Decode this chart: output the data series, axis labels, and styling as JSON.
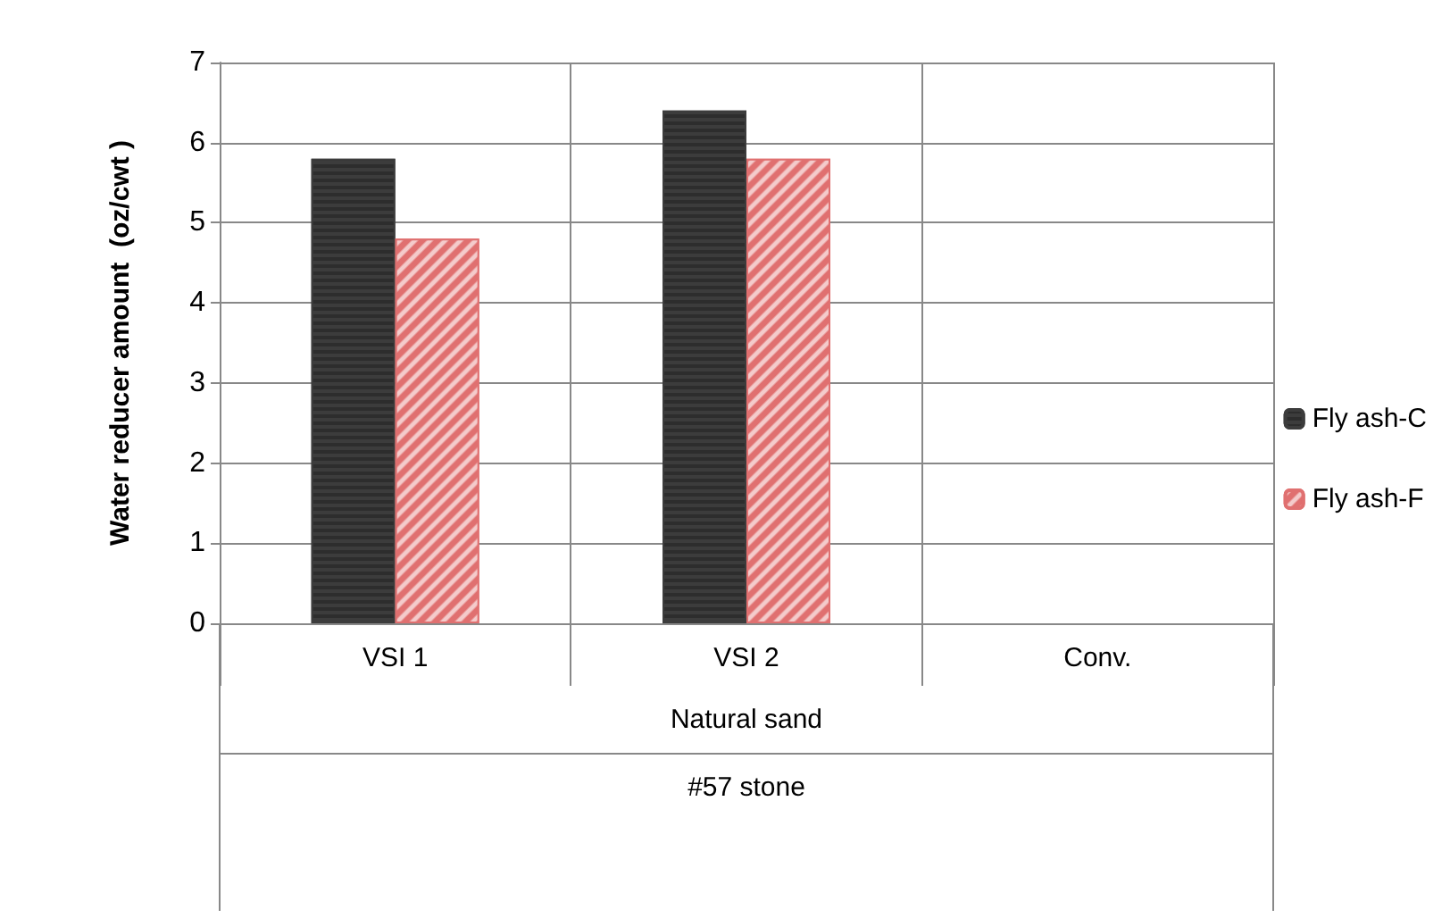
{
  "chart_data": {
    "type": "bar",
    "ylabel": "Water reducer amount  (oz/cwt )",
    "categories": [
      "VSI 1",
      "VSI 2",
      "Conv."
    ],
    "series": [
      {
        "name": "Fly ash-C",
        "color": "#3c3c3c",
        "values": [
          5.8,
          6.4,
          null
        ]
      },
      {
        "name": "Fly ash-F",
        "color": "#e07070",
        "values": [
          4.8,
          5.8,
          null
        ]
      }
    ],
    "annotations": [
      "Natural sand",
      "#57 stone"
    ],
    "ylim": [
      0,
      7
    ],
    "yticks": [
      0,
      1,
      2,
      3,
      4,
      5,
      6,
      7
    ],
    "grid": true,
    "legend": "right"
  }
}
